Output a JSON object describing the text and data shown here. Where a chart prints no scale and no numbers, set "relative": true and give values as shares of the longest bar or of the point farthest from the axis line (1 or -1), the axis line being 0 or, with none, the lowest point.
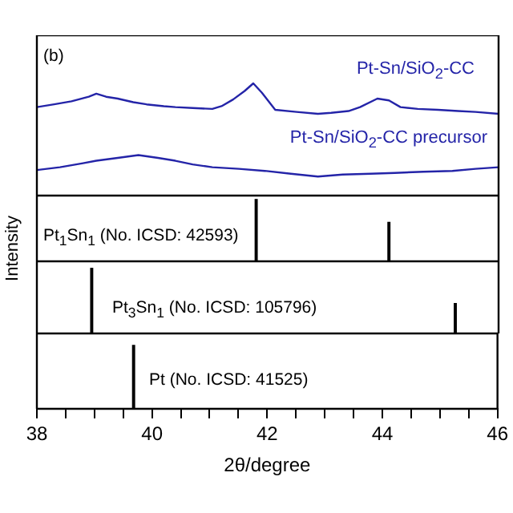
{
  "chart_data": [
    {
      "type": "line",
      "relative": true,
      "tick_labels": false,
      "xlim": [
        38,
        46
      ],
      "annotations": [
        "(b)"
      ],
      "series": [
        {
          "name": "Pt-Sn/SiO$_{2}$-CC",
          "color": "#2424a8",
          "x": [
            38.0,
            38.3,
            38.6,
            38.9,
            39.03,
            39.2,
            39.4,
            39.67,
            39.9,
            40.2,
            40.4,
            40.7,
            41.04,
            41.2,
            41.4,
            41.6,
            41.75,
            41.9,
            42.13,
            42.5,
            42.87,
            43.1,
            43.4,
            43.6,
            43.9,
            44.1,
            44.3,
            44.6,
            44.95,
            45.3,
            45.6,
            46.0
          ],
          "values": [
            0.22,
            0.31,
            0.41,
            0.56,
            0.66,
            0.56,
            0.5,
            0.38,
            0.31,
            0.25,
            0.22,
            0.19,
            0.16,
            0.25,
            0.47,
            0.75,
            1,
            0.69,
            0.13,
            0.06,
            0,
            0.03,
            0.09,
            0.22,
            0.5,
            0.44,
            0.22,
            0.16,
            0.13,
            0.09,
            0.06,
            0
          ]
        }
      ]
    },
    {
      "type": "line",
      "relative": true,
      "tick_labels": false,
      "xlim": [
        38,
        46
      ],
      "series": [
        {
          "name": "Pt-Sn/SiO$_{2}$-CC precursor",
          "color": "#2424a8",
          "x": [
            38.0,
            38.4,
            38.8,
            39.03,
            39.4,
            39.76,
            40.1,
            40.4,
            40.7,
            41.04,
            41.5,
            41.95,
            42.4,
            42.87,
            43.3,
            43.78,
            44.2,
            44.7,
            45.2,
            45.6,
            46.0
          ],
          "values": [
            0.63,
            0.7,
            0.8,
            0.86,
            0.93,
            1,
            0.93,
            0.86,
            0.77,
            0.7,
            0.66,
            0.61,
            0.54,
            0.47,
            0.52,
            0.54,
            0.56,
            0.59,
            0.61,
            0.66,
            0.7
          ]
        }
      ]
    },
    {
      "type": "bar",
      "relative": true,
      "tick_labels": false,
      "xlim": [
        38,
        46
      ],
      "ylabel": "Intensity",
      "annotations": [
        "Pt$_{1}$Sn$_{1}$ (No. ICSD: 42593)"
      ],
      "x": [
        41.8,
        44.1
      ],
      "values": [
        1,
        0.63
      ],
      "color": "#000000"
    },
    {
      "type": "bar",
      "relative": true,
      "tick_labels": false,
      "xlim": [
        38,
        46
      ],
      "annotations": [
        "Pt$_{3}$Sn$_{1}$ (No. ICSD: 105796)"
      ],
      "x": [
        38.95,
        45.25
      ],
      "values": [
        1,
        0.46
      ],
      "color": "#000000"
    },
    {
      "type": "bar",
      "relative": true,
      "tick_labels": "x",
      "xlim": [
        38,
        46
      ],
      "xlabel": "2θ/degree",
      "annotations": [
        "Pt (No. ICSD: 41525)"
      ],
      "x": [
        39.68
      ],
      "values": [
        1
      ],
      "color": "#000000",
      "xticks": [
        38,
        {
          "value": 38.5,
          "label": null
        },
        {
          "value": 39,
          "label": null
        },
        {
          "value": 39.5,
          "label": null
        },
        {
          "value": 40,
          "label": "40"
        },
        {
          "value": 40.5,
          "label": null
        },
        {
          "value": 41,
          "label": null
        },
        {
          "value": 41.5,
          "label": null
        },
        42,
        {
          "value": 42.5,
          "label": null
        },
        {
          "value": 43,
          "label": null
        },
        {
          "value": 43.5,
          "label": null
        },
        44,
        {
          "value": 44.5,
          "label": null
        },
        {
          "value": 45,
          "label": null
        },
        {
          "value": 45.5,
          "label": null
        },
        46
      ]
    }
  ]
}
